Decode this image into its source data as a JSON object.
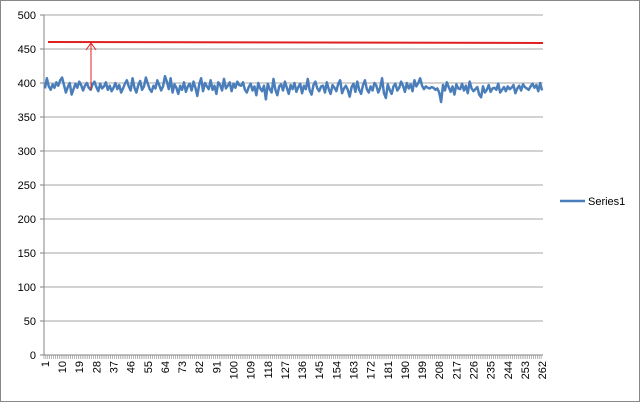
{
  "chart_data": {
    "type": "line",
    "categories": [
      1,
      null,
      null,
      null,
      null,
      null,
      null,
      null,
      null,
      10,
      null,
      null,
      null,
      null,
      null,
      null,
      null,
      null,
      19,
      null,
      null,
      null,
      null,
      null,
      null,
      null,
      null,
      28,
      null,
      null,
      null,
      null,
      null,
      null,
      null,
      null,
      37,
      null,
      null,
      null,
      null,
      null,
      null,
      null,
      null,
      46,
      null,
      null,
      null,
      null,
      null,
      null,
      null,
      null,
      55,
      null,
      null,
      null,
      null,
      null,
      null,
      null,
      null,
      64,
      null,
      null,
      null,
      null,
      null,
      null,
      null,
      null,
      73,
      null,
      null,
      null,
      null,
      null,
      null,
      null,
      null,
      82,
      null,
      null,
      null,
      null,
      null,
      null,
      null,
      null,
      91,
      null,
      null,
      null,
      null,
      null,
      null,
      null,
      null,
      100,
      null,
      null,
      null,
      null,
      null,
      null,
      null,
      null,
      109,
      null,
      null,
      null,
      null,
      null,
      null,
      null,
      null,
      118,
      null,
      null,
      null,
      null,
      null,
      null,
      null,
      null,
      127,
      null,
      null,
      null,
      null,
      null,
      null,
      null,
      null,
      136,
      null,
      null,
      null,
      null,
      null,
      null,
      null,
      null,
      145,
      null,
      null,
      null,
      null,
      null,
      null,
      null,
      null,
      154,
      null,
      null,
      null,
      null,
      null,
      null,
      null,
      null,
      163,
      null,
      null,
      null,
      null,
      null,
      null,
      null,
      null,
      172,
      null,
      null,
      null,
      null,
      null,
      null,
      null,
      null,
      181,
      null,
      null,
      null,
      null,
      null,
      null,
      null,
      null,
      190,
      null,
      null,
      null,
      null,
      null,
      null,
      null,
      null,
      199,
      null,
      null,
      null,
      null,
      null,
      null,
      null,
      null,
      208,
      null,
      null,
      null,
      null,
      null,
      null,
      null,
      null,
      217,
      null,
      null,
      null,
      null,
      null,
      null,
      null,
      null,
      226,
      null,
      null,
      null,
      null,
      null,
      null,
      null,
      null,
      235,
      null,
      null,
      null,
      null,
      null,
      null,
      null,
      null,
      244,
      null,
      null,
      null,
      null,
      null,
      null,
      null,
      null,
      253,
      null,
      null,
      null,
      null,
      null,
      null,
      null,
      null,
      262
    ],
    "series": [
      {
        "name": "Series1",
        "color": "#4a7ebb",
        "values": [
          392,
          407,
          395,
          390,
          398,
          393,
          401,
          396,
          404,
          408,
          397,
          386,
          394,
          400,
          383,
          391,
          399,
          393,
          402,
          397,
          389,
          396,
          400,
          393,
          390,
          398,
          402,
          394,
          388,
          399,
          392,
          395,
          401,
          390,
          396,
          388,
          393,
          400,
          391,
          397,
          386,
          392,
          399,
          404,
          395,
          389,
          407,
          393,
          386,
          397,
          403,
          390,
          395,
          408,
          399,
          391,
          387,
          396,
          392,
          404,
          397,
          389,
          395,
          410,
          402,
          391,
          407,
          386,
          398,
          393,
          384,
          396,
          390,
          401,
          387,
          395,
          399,
          389,
          402,
          393,
          381,
          398,
          407,
          388,
          400,
          395,
          391,
          404,
          390,
          396,
          384,
          401,
          397,
          389,
          406,
          392,
          396,
          401,
          388,
          399,
          393,
          402,
          397,
          396,
          401,
          390,
          386,
          394,
          399,
          389,
          395,
          382,
          400,
          392,
          388,
          396,
          376,
          399,
          391,
          386,
          406,
          390,
          382,
          395,
          398,
          389,
          402,
          393,
          384,
          397,
          391,
          400,
          387,
          394,
          399,
          385,
          396,
          391,
          406,
          389,
          383,
          397,
          402,
          392,
          388,
          395,
          396,
          386,
          401,
          391,
          384,
          397,
          393,
          388,
          399,
          404,
          385,
          392,
          396,
          390,
          380,
          394,
          399,
          387,
          402,
          390,
          384,
          397,
          404,
          391,
          386,
          395,
          389,
          400,
          396,
          386,
          393,
          407,
          385,
          378,
          398,
          390,
          384,
          395,
          399,
          389,
          393,
          402,
          396,
          387,
          400,
          392,
          398,
          388,
          404,
          395,
          400,
          407,
          396,
          391,
          395,
          393,
          392,
          394,
          393,
          390,
          392,
          386,
          372,
          397,
          389,
          401,
          394,
          387,
          395,
          383,
          398,
          392,
          391,
          399,
          389,
          396,
          385,
          402,
          392,
          388,
          391,
          394,
          383,
          379,
          395,
          386,
          390,
          397,
          387,
          392,
          393,
          390,
          399,
          386,
          390,
          394,
          388,
          395,
          391,
          393,
          397,
          385,
          392,
          396,
          389,
          398,
          394,
          392,
          390,
          395,
          399,
          393,
          397,
          388,
          400,
          389
        ]
      }
    ],
    "ylim": [
      0,
      500
    ],
    "yticks": [
      0,
      50,
      100,
      150,
      200,
      250,
      300,
      350,
      400,
      450,
      500
    ],
    "grid": true,
    "legend": "right"
  }
}
